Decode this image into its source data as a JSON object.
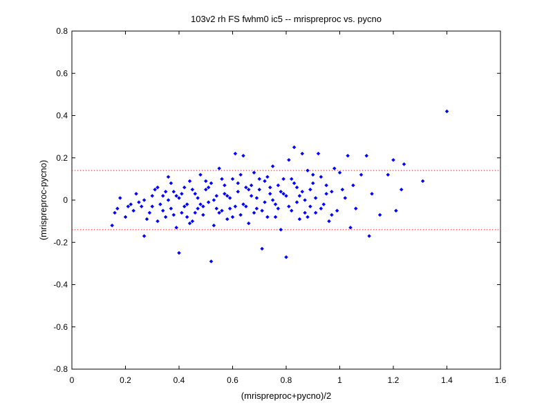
{
  "chart_data": {
    "type": "scatter",
    "title": "103v2 rh FS fwhm0 ic5 -- mrispreproc vs. pycno",
    "xlabel": "(mrispreproc+pycno)/2",
    "ylabel": "(mrispreproc-pycno)",
    "xlim": [
      0,
      1.6
    ],
    "ylim": [
      -0.8,
      0.8
    ],
    "x_ticks": [
      "0",
      "0.2",
      "0.4",
      "0.6",
      "0.8",
      "1",
      "1.2",
      "1.4",
      "1.6"
    ],
    "y_ticks": [
      "0.8",
      "0.6",
      "0.4",
      "0.2",
      "0",
      "-0.2",
      "-0.4",
      "-0.6",
      "-0.8"
    ],
    "grid": false,
    "marker_color": "#0000ff",
    "reference_lines": [
      {
        "y": 0.14,
        "style": "dotted",
        "color": "#ff0000"
      },
      {
        "y": -0.14,
        "style": "dotted",
        "color": "#ff0000"
      }
    ],
    "series": [
      {
        "points": [
          [
            0.15,
            -0.12
          ],
          [
            0.16,
            -0.06
          ],
          [
            0.17,
            -0.04
          ],
          [
            0.18,
            0.01
          ],
          [
            0.2,
            -0.08
          ],
          [
            0.21,
            -0.03
          ],
          [
            0.22,
            -0.02
          ],
          [
            0.23,
            -0.05
          ],
          [
            0.24,
            0.03
          ],
          [
            0.25,
            -0.01
          ],
          [
            0.26,
            -0.03
          ],
          [
            0.27,
            -0.17
          ],
          [
            0.27,
            0.0
          ],
          [
            0.28,
            -0.09
          ],
          [
            0.29,
            -0.06
          ],
          [
            0.3,
            -0.03
          ],
          [
            0.31,
            0.05
          ],
          [
            0.32,
            -0.1
          ],
          [
            0.33,
            -0.02
          ],
          [
            0.34,
            0.02
          ],
          [
            0.35,
            -0.08
          ],
          [
            0.36,
            0.11
          ],
          [
            0.37,
            -0.04
          ],
          [
            0.38,
            0.04
          ],
          [
            0.39,
            -0.13
          ],
          [
            0.4,
            -0.25
          ],
          [
            0.4,
            0.01
          ],
          [
            0.41,
            -0.06
          ],
          [
            0.42,
            0.06
          ],
          [
            0.43,
            -0.02
          ],
          [
            0.44,
            0.09
          ],
          [
            0.45,
            -0.1
          ],
          [
            0.46,
            0.03
          ],
          [
            0.47,
            -0.04
          ],
          [
            0.48,
            0.12
          ],
          [
            0.49,
            -0.07
          ],
          [
            0.5,
            0.05
          ],
          [
            0.51,
            -0.01
          ],
          [
            0.52,
            -0.29
          ],
          [
            0.52,
            0.08
          ],
          [
            0.53,
            -0.12
          ],
          [
            0.54,
            0.02
          ],
          [
            0.55,
            0.15
          ],
          [
            0.56,
            -0.05
          ],
          [
            0.57,
            0.07
          ],
          [
            0.58,
            -0.09
          ],
          [
            0.59,
            0.01
          ],
          [
            0.6,
            0.1
          ],
          [
            0.61,
            -0.03
          ],
          [
            0.61,
            0.22
          ],
          [
            0.62,
            0.04
          ],
          [
            0.63,
            -0.07
          ],
          [
            0.64,
            0.21
          ],
          [
            0.65,
            0.06
          ],
          [
            0.66,
            -0.11
          ],
          [
            0.67,
            0.02
          ],
          [
            0.68,
            0.13
          ],
          [
            0.69,
            -0.04
          ],
          [
            0.7,
            0.05
          ],
          [
            0.71,
            -0.23
          ],
          [
            0.72,
            0.09
          ],
          [
            0.73,
            -0.08
          ],
          [
            0.74,
            0.03
          ],
          [
            0.75,
            0.16
          ],
          [
            0.76,
            -0.02
          ],
          [
            0.77,
            0.07
          ],
          [
            0.78,
            -0.14
          ],
          [
            0.79,
            0.1
          ],
          [
            0.8,
            -0.27
          ],
          [
            0.8,
            0.02
          ],
          [
            0.81,
            0.19
          ],
          [
            0.82,
            -0.05
          ],
          [
            0.83,
            0.25
          ],
          [
            0.84,
            0.06
          ],
          [
            0.85,
            -0.09
          ],
          [
            0.86,
            0.22
          ],
          [
            0.87,
            0.0
          ],
          [
            0.88,
            0.14
          ],
          [
            0.89,
            -0.03
          ],
          [
            0.9,
            0.08
          ],
          [
            0.91,
            -0.06
          ],
          [
            0.92,
            0.22
          ],
          [
            0.93,
            0.11
          ],
          [
            0.94,
            -0.02
          ],
          [
            0.95,
            0.07
          ],
          [
            0.96,
            -0.1
          ],
          [
            0.97,
            0.04
          ],
          [
            0.98,
            0.15
          ],
          [
            0.99,
            -0.05
          ],
          [
            1.0,
            0.13
          ],
          [
            1.02,
            0.01
          ],
          [
            1.03,
            0.21
          ],
          [
            1.04,
            -0.13
          ],
          [
            1.05,
            0.07
          ],
          [
            1.06,
            -0.04
          ],
          [
            1.08,
            0.12
          ],
          [
            1.1,
            0.21
          ],
          [
            1.11,
            -0.17
          ],
          [
            1.12,
            0.03
          ],
          [
            1.15,
            -0.07
          ],
          [
            1.18,
            0.12
          ],
          [
            1.2,
            0.19
          ],
          [
            1.21,
            -0.05
          ],
          [
            1.23,
            0.05
          ],
          [
            1.24,
            0.17
          ],
          [
            1.31,
            0.09
          ],
          [
            1.4,
            0.42
          ],
          [
            0.3,
            0.02
          ],
          [
            0.32,
            0.06
          ],
          [
            0.34,
            -0.05
          ],
          [
            0.36,
            0.0
          ],
          [
            0.38,
            -0.07
          ],
          [
            0.41,
            0.03
          ],
          [
            0.43,
            -0.08
          ],
          [
            0.45,
            0.05
          ],
          [
            0.47,
            0.01
          ],
          [
            0.49,
            -0.03
          ],
          [
            0.5,
            0.09
          ],
          [
            0.53,
            0.0
          ],
          [
            0.55,
            -0.06
          ],
          [
            0.57,
            0.03
          ],
          [
            0.59,
            -0.04
          ],
          [
            0.62,
            0.08
          ],
          [
            0.64,
            -0.02
          ],
          [
            0.66,
            0.05
          ],
          [
            0.68,
            -0.06
          ],
          [
            0.7,
            0.1
          ],
          [
            0.72,
            -0.01
          ],
          [
            0.74,
            0.06
          ],
          [
            0.76,
            -0.08
          ],
          [
            0.78,
            0.04
          ],
          [
            0.81,
            -0.03
          ],
          [
            0.83,
            0.08
          ],
          [
            0.85,
            0.02
          ],
          [
            0.87,
            -0.06
          ],
          [
            0.89,
            0.05
          ],
          [
            0.91,
            0.01
          ],
          [
            0.35,
            0.04
          ],
          [
            0.37,
            0.08
          ],
          [
            0.39,
            0.02
          ],
          [
            0.42,
            -0.03
          ],
          [
            0.44,
            -0.11
          ],
          [
            0.46,
            -0.06
          ],
          [
            0.48,
            -0.02
          ],
          [
            0.51,
            0.06
          ],
          [
            0.54,
            -0.04
          ],
          [
            0.56,
            0.1
          ],
          [
            0.58,
            0.02
          ],
          [
            0.6,
            -0.08
          ],
          [
            0.63,
            0.12
          ],
          [
            0.65,
            -0.03
          ],
          [
            0.67,
            0.07
          ],
          [
            0.69,
            0.01
          ],
          [
            0.71,
            -0.05
          ],
          [
            0.73,
            0.11
          ],
          [
            0.75,
            0.0
          ],
          [
            0.77,
            -0.04
          ],
          [
            0.79,
            0.03
          ],
          [
            0.82,
            0.1
          ],
          [
            0.84,
            -0.01
          ],
          [
            0.86,
            0.04
          ],
          [
            0.88,
            -0.08
          ],
          [
            0.9,
            0.12
          ],
          [
            0.93,
            -0.04
          ],
          [
            0.95,
            0.03
          ],
          [
            0.97,
            -0.07
          ],
          [
            1.01,
            0.05
          ]
        ]
      }
    ]
  }
}
